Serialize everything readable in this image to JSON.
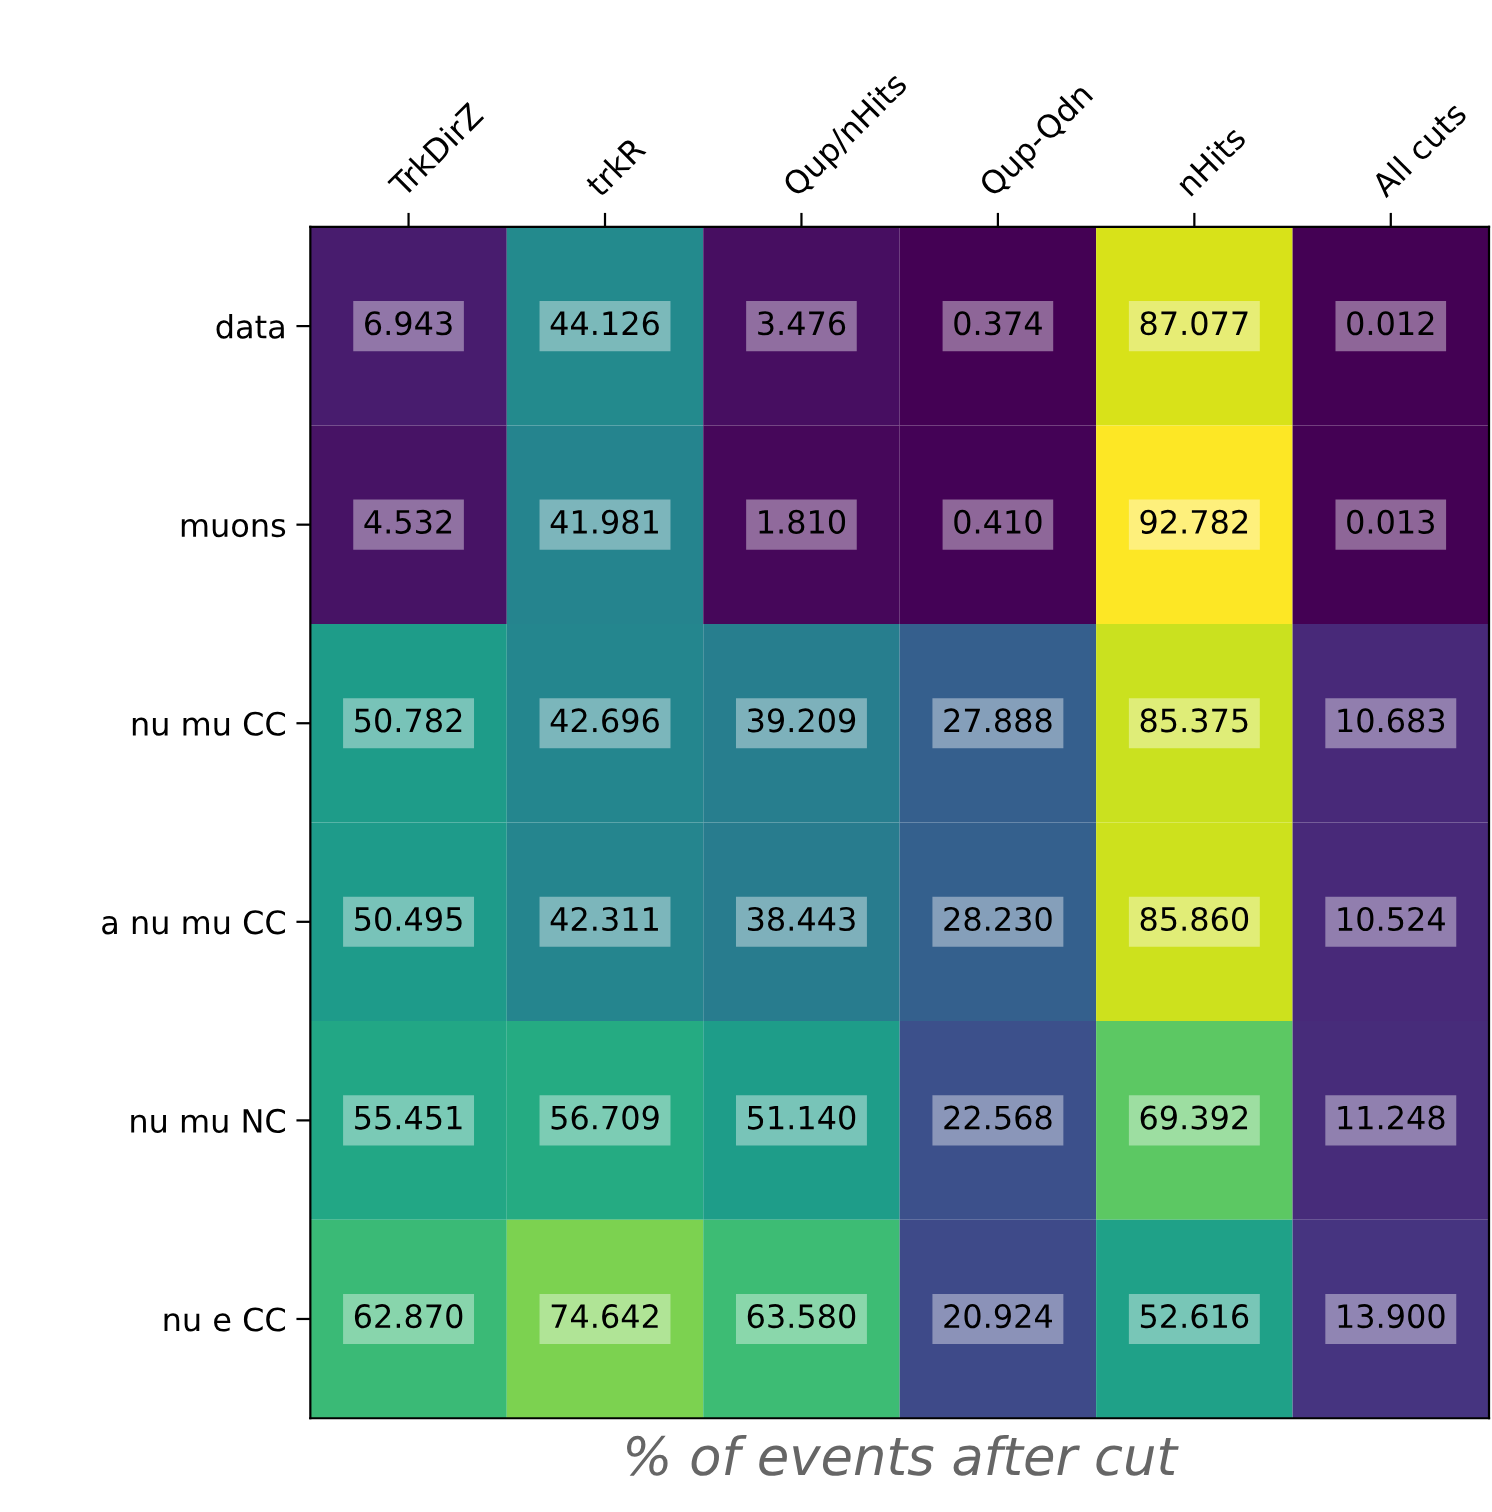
{
  "chart_data": {
    "type": "heatmap",
    "xlabel": "% of events after cut",
    "categories": [
      "TrkDirZ",
      "trkR",
      "Qup/nHits",
      "Qup-Qdn",
      "nHits",
      "All cuts"
    ],
    "y_categories": [
      "data",
      "muons",
      "nu mu CC",
      "a nu mu CC",
      "nu mu NC",
      "nu e CC"
    ],
    "cells": [
      [
        6.943,
        44.126,
        3.476,
        0.374,
        87.077,
        0.012
      ],
      [
        4.532,
        41.981,
        1.81,
        0.41,
        92.782,
        0.013
      ],
      [
        50.782,
        42.696,
        39.209,
        27.888,
        85.375,
        10.683
      ],
      [
        50.495,
        42.311,
        38.443,
        28.23,
        85.86,
        10.524
      ],
      [
        55.451,
        56.709,
        51.14,
        22.568,
        69.392,
        11.248
      ],
      [
        62.87,
        74.642,
        63.58,
        20.924,
        52.616,
        13.9
      ]
    ],
    "cell_labels": [
      [
        "6.943",
        "44.126",
        "3.476",
        "0.374",
        "87.077",
        "0.012"
      ],
      [
        "4.532",
        "41.981",
        "1.810",
        "0.410",
        "92.782",
        "0.013"
      ],
      [
        "50.782",
        "42.696",
        "39.209",
        "27.888",
        "85.375",
        "10.683"
      ],
      [
        "50.495",
        "42.311",
        "38.443",
        "28.230",
        "85.860",
        "10.524"
      ],
      [
        "55.451",
        "56.709",
        "51.140",
        "22.568",
        "69.392",
        "11.248"
      ],
      [
        "62.870",
        "74.642",
        "63.580",
        "20.924",
        "52.616",
        "13.900"
      ]
    ]
  }
}
